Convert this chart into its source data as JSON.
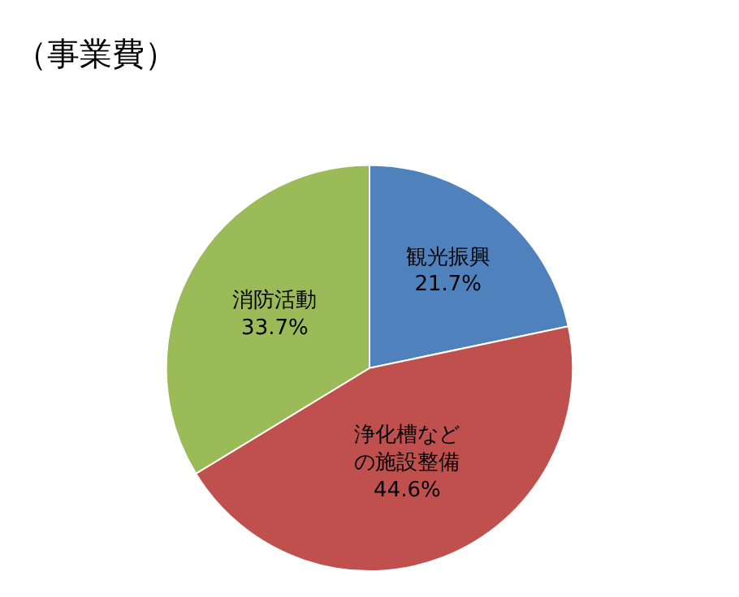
{
  "chart_data": {
    "type": "pie",
    "title": "（事業費）",
    "categories": [
      "観光振興",
      "浄化槽などの施設整備",
      "消防活動"
    ],
    "values": [
      21.7,
      44.6,
      33.7
    ],
    "value_labels": [
      "21.7%",
      "44.6%",
      "33.7%"
    ],
    "colors": [
      "#4f81bd",
      "#c0504d",
      "#9bbb59"
    ],
    "legend": false
  }
}
